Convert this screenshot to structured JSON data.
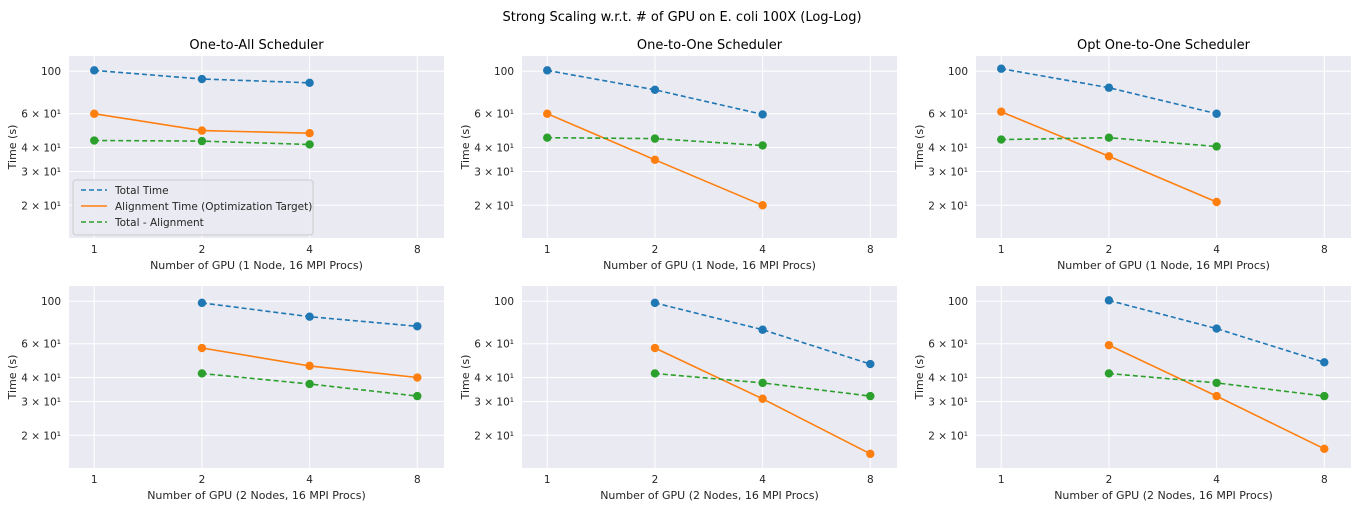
{
  "figure": {
    "suptitle": "Strong Scaling w.r.t. # of GPU on E. coli 100X (Log-Log)",
    "background": "#ffffff",
    "axes_facecolor": "#eaeaf2",
    "grid_color": "#ffffff"
  },
  "legend": {
    "placement": "lower-left",
    "panel": 0,
    "entries": [
      {
        "label": "Total Time",
        "series": 0
      },
      {
        "label": "Alignment Time (Optimization Target)",
        "series": 1
      },
      {
        "label": "Total - Alignment",
        "series": 2
      }
    ]
  },
  "chart_data": [
    {
      "type": "line",
      "title": "One-to-All Scheduler",
      "xlabel": "Number of GPU (1 Node, 16 MPI Procs)",
      "ylabel": "Time (s)",
      "xscale": "log",
      "yscale": "log",
      "xlim": [
        0.85,
        9.5
      ],
      "ylim": [
        13.5,
        120
      ],
      "xticks": [
        1,
        2,
        4,
        8
      ],
      "xticklabels": [
        "1",
        "2",
        "4",
        "8"
      ],
      "yticks": [
        20,
        30,
        40,
        60,
        100
      ],
      "yticklabels": [
        "2 × 10¹",
        "3 × 10¹",
        "4 × 10¹",
        "6 × 10¹",
        "100"
      ],
      "grid": true,
      "series": [
        {
          "name": "Total Time",
          "color": "#1f77b4",
          "dash": "dashed",
          "x": [
            1,
            2,
            4
          ],
          "y": [
            101,
            91,
            87
          ]
        },
        {
          "name": "Alignment Time (Optimization Target)",
          "color": "#ff7f0e",
          "dash": "solid",
          "x": [
            1,
            2,
            4
          ],
          "y": [
            60,
            49,
            47.5
          ]
        },
        {
          "name": "Total - Alignment",
          "color": "#2ca02c",
          "dash": "dashed",
          "x": [
            1,
            2,
            4
          ],
          "y": [
            43.5,
            43.2,
            41.5
          ]
        }
      ]
    },
    {
      "type": "line",
      "title": "One-to-One Scheduler",
      "xlabel": "Number of GPU (1 Node, 16 MPI Procs)",
      "ylabel": "Time (s)",
      "xscale": "log",
      "yscale": "log",
      "xlim": [
        0.85,
        9.5
      ],
      "ylim": [
        13.5,
        120
      ],
      "xticks": [
        1,
        2,
        4,
        8
      ],
      "xticklabels": [
        "1",
        "2",
        "4",
        "8"
      ],
      "yticks": [
        20,
        30,
        40,
        60,
        100
      ],
      "yticklabels": [
        "2 × 10¹",
        "3 × 10¹",
        "4 × 10¹",
        "6 × 10¹",
        "100"
      ],
      "grid": true,
      "series": [
        {
          "name": "Total Time",
          "color": "#1f77b4",
          "dash": "dashed",
          "x": [
            1,
            2,
            4
          ],
          "y": [
            101,
            80,
            59.5
          ]
        },
        {
          "name": "Alignment Time (Optimization Target)",
          "color": "#ff7f0e",
          "dash": "solid",
          "x": [
            1,
            2,
            4
          ],
          "y": [
            60,
            34.5,
            20
          ]
        },
        {
          "name": "Total - Alignment",
          "color": "#2ca02c",
          "dash": "dashed",
          "x": [
            1,
            2,
            4
          ],
          "y": [
            45,
            44.5,
            41
          ]
        }
      ]
    },
    {
      "type": "line",
      "title": "Opt One-to-One Scheduler",
      "xlabel": "Number of GPU (1 Node, 16 MPI Procs)",
      "ylabel": "Time (s)",
      "xscale": "log",
      "yscale": "log",
      "xlim": [
        0.85,
        9.5
      ],
      "ylim": [
        13.5,
        120
      ],
      "xticks": [
        1,
        2,
        4,
        8
      ],
      "xticklabels": [
        "1",
        "2",
        "4",
        "8"
      ],
      "yticks": [
        20,
        30,
        40,
        60,
        100
      ],
      "yticklabels": [
        "2 × 10¹",
        "3 × 10¹",
        "4 × 10¹",
        "6 × 10¹",
        "100"
      ],
      "grid": true,
      "series": [
        {
          "name": "Total Time",
          "color": "#1f77b4",
          "dash": "dashed",
          "x": [
            1,
            2,
            4
          ],
          "y": [
            103,
            82,
            60
          ]
        },
        {
          "name": "Alignment Time (Optimization Target)",
          "color": "#ff7f0e",
          "dash": "solid",
          "x": [
            1,
            2,
            4
          ],
          "y": [
            61.5,
            36,
            20.8
          ]
        },
        {
          "name": "Total - Alignment",
          "color": "#2ca02c",
          "dash": "dashed",
          "x": [
            1,
            2,
            4
          ],
          "y": [
            44,
            45,
            40.5
          ]
        }
      ]
    },
    {
      "type": "line",
      "title": "",
      "xlabel": "Number of GPU (2 Nodes, 16 MPI Procs)",
      "ylabel": "Time (s)",
      "xscale": "log",
      "yscale": "log",
      "xlim": [
        0.85,
        9.5
      ],
      "ylim": [
        13.5,
        120
      ],
      "xticks": [
        1,
        2,
        4,
        8
      ],
      "xticklabels": [
        "1",
        "2",
        "4",
        "8"
      ],
      "yticks": [
        20,
        30,
        40,
        60,
        100
      ],
      "yticklabels": [
        "2 × 10¹",
        "3 × 10¹",
        "4 × 10¹",
        "6 × 10¹",
        "100"
      ],
      "grid": true,
      "series": [
        {
          "name": "Total Time",
          "color": "#1f77b4",
          "dash": "dashed",
          "x": [
            2,
            4,
            8
          ],
          "y": [
            98,
            83,
            74
          ]
        },
        {
          "name": "Alignment Time (Optimization Target)",
          "color": "#ff7f0e",
          "dash": "solid",
          "x": [
            2,
            4,
            8
          ],
          "y": [
            57,
            46,
            40
          ]
        },
        {
          "name": "Total - Alignment",
          "color": "#2ca02c",
          "dash": "dashed",
          "x": [
            2,
            4,
            8
          ],
          "y": [
            42,
            37,
            32
          ]
        }
      ]
    },
    {
      "type": "line",
      "title": "",
      "xlabel": "Number of GPU (2 Nodes, 16 MPI Procs)",
      "ylabel": "Time (s)",
      "xscale": "log",
      "yscale": "log",
      "xlim": [
        0.85,
        9.5
      ],
      "ylim": [
        13.5,
        120
      ],
      "xticks": [
        1,
        2,
        4,
        8
      ],
      "xticklabels": [
        "1",
        "2",
        "4",
        "8"
      ],
      "yticks": [
        20,
        30,
        40,
        60,
        100
      ],
      "yticklabels": [
        "2 × 10¹",
        "3 × 10¹",
        "4 × 10¹",
        "6 × 10¹",
        "100"
      ],
      "grid": true,
      "series": [
        {
          "name": "Total Time",
          "color": "#1f77b4",
          "dash": "dashed",
          "x": [
            2,
            4,
            8
          ],
          "y": [
            98,
            71,
            47
          ]
        },
        {
          "name": "Alignment Time (Optimization Target)",
          "color": "#ff7f0e",
          "dash": "solid",
          "x": [
            2,
            4,
            8
          ],
          "y": [
            57,
            31,
            16
          ]
        },
        {
          "name": "Total - Alignment",
          "color": "#2ca02c",
          "dash": "dashed",
          "x": [
            2,
            4,
            8
          ],
          "y": [
            42,
            37.5,
            32
          ]
        }
      ]
    },
    {
      "type": "line",
      "title": "",
      "xlabel": "Number of GPU (2 Nodes, 16 MPI Procs)",
      "ylabel": "Time (s)",
      "xscale": "log",
      "yscale": "log",
      "xlim": [
        0.85,
        9.5
      ],
      "ylim": [
        13.5,
        120
      ],
      "xticks": [
        1,
        2,
        4,
        8
      ],
      "xticklabels": [
        "1",
        "2",
        "4",
        "8"
      ],
      "yticks": [
        20,
        30,
        40,
        60,
        100
      ],
      "yticklabels": [
        "2 × 10¹",
        "3 × 10¹",
        "4 × 10¹",
        "6 × 10¹",
        "100"
      ],
      "grid": true,
      "series": [
        {
          "name": "Total Time",
          "color": "#1f77b4",
          "dash": "dashed",
          "x": [
            2,
            4,
            8
          ],
          "y": [
            101,
            72,
            48
          ]
        },
        {
          "name": "Alignment Time (Optimization Target)",
          "color": "#ff7f0e",
          "dash": "solid",
          "x": [
            2,
            4,
            8
          ],
          "y": [
            59,
            32,
            17
          ]
        },
        {
          "name": "Total - Alignment",
          "color": "#2ca02c",
          "dash": "dashed",
          "x": [
            2,
            4,
            8
          ],
          "y": [
            42,
            37.5,
            32
          ]
        }
      ]
    }
  ]
}
